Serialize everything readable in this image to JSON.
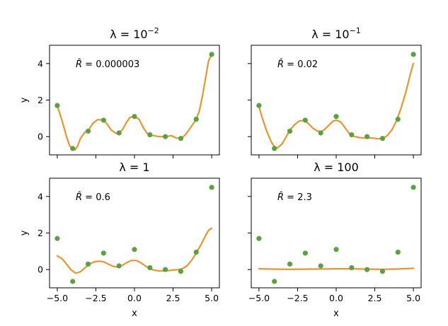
{
  "chart_data": [
    {
      "type": "scatter",
      "title_base": "λ = 10",
      "title_sup": "−2",
      "annotation_symbol": "R̂",
      "annotation_value": " = 0.000003",
      "xlabel": "",
      "ylabel": "y",
      "xlim": [
        -5.5,
        5.5
      ],
      "ylim": [
        -1.0,
        5.0
      ],
      "xticks": [
        "-5.0",
        "-2.5",
        "0.0",
        "2.5",
        "5.0"
      ],
      "yticks": [
        "0",
        "2",
        "4"
      ],
      "show_xticklabels": false,
      "show_yticklabels": true,
      "points": {
        "x": [
          -5,
          -4,
          -3,
          -2,
          -1,
          0,
          1,
          2,
          3,
          4,
          5
        ],
        "y": [
          1.7,
          -0.65,
          0.3,
          0.9,
          0.2,
          1.1,
          0.1,
          0.0,
          -0.1,
          0.95,
          4.5
        ]
      },
      "fit": {
        "x": [
          -5.0,
          -4.7,
          -4.4,
          -4.2,
          -4.0,
          -3.85,
          -3.7,
          -3.5,
          -3.2,
          -3.0,
          -2.7,
          -2.4,
          -2.2,
          -2.0,
          -1.8,
          -1.5,
          -1.2,
          -1.0,
          -0.8,
          -0.5,
          -0.3,
          0.0,
          0.3,
          0.6,
          0.8,
          1.0,
          1.3,
          1.6,
          2.0,
          2.4,
          2.7,
          3.0,
          3.3,
          3.6,
          3.8,
          4.0,
          4.2,
          4.4,
          4.6,
          4.8,
          5.0
        ],
        "y": [
          1.7,
          0.9,
          0.0,
          -0.5,
          -0.68,
          -0.72,
          -0.55,
          -0.1,
          0.25,
          0.32,
          0.72,
          0.92,
          0.92,
          0.88,
          0.72,
          0.35,
          0.18,
          0.2,
          0.35,
          0.8,
          1.05,
          1.1,
          0.95,
          0.45,
          0.2,
          0.1,
          0.04,
          0.0,
          0.0,
          0.05,
          -0.08,
          -0.1,
          0.1,
          0.45,
          0.7,
          0.95,
          1.4,
          2.2,
          3.2,
          4.15,
          4.5
        ]
      }
    },
    {
      "type": "scatter",
      "title_base": "λ = 10",
      "title_sup": "−1",
      "annotation_symbol": "R̂",
      "annotation_value": " = 0.02",
      "xlabel": "",
      "ylabel": "",
      "xlim": [
        -5.5,
        5.5
      ],
      "ylim": [
        -1.0,
        5.0
      ],
      "xticks": [
        "-5.0",
        "-2.5",
        "0.0",
        "2.5",
        "5.0"
      ],
      "yticks": [
        "0",
        "2",
        "4"
      ],
      "show_xticklabels": false,
      "show_yticklabels": false,
      "points": {
        "x": [
          -5,
          -4,
          -3,
          -2,
          -1,
          0,
          1,
          2,
          3,
          4,
          5
        ],
        "y": [
          1.7,
          -0.65,
          0.3,
          0.9,
          0.2,
          1.1,
          0.1,
          0.0,
          -0.1,
          0.95,
          4.5
        ]
      },
      "fit": {
        "x": [
          -5.0,
          -4.8,
          -4.5,
          -4.2,
          -4.0,
          -3.8,
          -3.5,
          -3.2,
          -3.0,
          -2.7,
          -2.4,
          -2.1,
          -1.8,
          -1.5,
          -1.2,
          -1.0,
          -0.8,
          -0.5,
          -0.2,
          0.0,
          0.3,
          0.6,
          0.9,
          1.2,
          1.5,
          1.8,
          2.1,
          2.4,
          2.7,
          3.0,
          3.3,
          3.6,
          3.9,
          4.2,
          4.5,
          4.8,
          5.0
        ],
        "y": [
          1.65,
          1.05,
          0.3,
          -0.3,
          -0.55,
          -0.62,
          -0.4,
          0.05,
          0.35,
          0.65,
          0.85,
          0.88,
          0.72,
          0.45,
          0.3,
          0.28,
          0.35,
          0.6,
          0.85,
          0.9,
          0.8,
          0.45,
          0.12,
          0.0,
          -0.05,
          -0.08,
          -0.07,
          -0.08,
          -0.12,
          -0.1,
          0.05,
          0.35,
          0.85,
          1.55,
          2.4,
          3.4,
          4.0
        ]
      }
    },
    {
      "type": "scatter",
      "title_base": "λ = 1",
      "title_sup": "",
      "annotation_symbol": "R̂",
      "annotation_value": " = 0.6",
      "xlabel": "x",
      "ylabel": "y",
      "xlim": [
        -5.5,
        5.5
      ],
      "ylim": [
        -1.0,
        5.0
      ],
      "xticks": [
        "−5.0",
        "−2.5",
        "0.0",
        "2.5",
        "5.0"
      ],
      "yticks": [
        "0",
        "2",
        "4"
      ],
      "show_xticklabels": true,
      "show_yticklabels": true,
      "points": {
        "x": [
          -5,
          -4,
          -3,
          -2,
          -1,
          0,
          1,
          2,
          3,
          4,
          5
        ],
        "y": [
          1.7,
          -0.65,
          0.3,
          0.9,
          0.2,
          1.1,
          0.1,
          0.0,
          -0.1,
          0.95,
          4.5
        ]
      },
      "fit": {
        "x": [
          -5.0,
          -4.7,
          -4.4,
          -4.1,
          -3.8,
          -3.5,
          -3.2,
          -2.9,
          -2.6,
          -2.3,
          -2.0,
          -1.7,
          -1.4,
          -1.1,
          -0.8,
          -0.5,
          -0.2,
          0.1,
          0.4,
          0.7,
          1.0,
          1.3,
          1.6,
          1.9,
          2.2,
          2.5,
          2.8,
          3.1,
          3.4,
          3.7,
          4.0,
          4.3,
          4.6,
          4.8,
          5.0
        ],
        "y": [
          0.75,
          0.6,
          0.3,
          -0.02,
          -0.2,
          -0.12,
          0.1,
          0.3,
          0.42,
          0.46,
          0.42,
          0.3,
          0.18,
          0.14,
          0.22,
          0.38,
          0.5,
          0.5,
          0.38,
          0.2,
          0.04,
          -0.04,
          -0.08,
          -0.08,
          -0.06,
          -0.03,
          -0.01,
          0.05,
          0.2,
          0.5,
          0.9,
          1.35,
          1.85,
          2.15,
          2.25
        ]
      }
    },
    {
      "type": "scatter",
      "title_base": "λ = 100",
      "title_sup": "",
      "annotation_symbol": "R̂",
      "annotation_value": " = 2.3",
      "xlabel": "x",
      "ylabel": "",
      "xlim": [
        -5.5,
        5.5
      ],
      "ylim": [
        -1.0,
        5.0
      ],
      "xticks": [
        "−5.0",
        "−2.5",
        "0.0",
        "2.5",
        "5.0"
      ],
      "yticks": [
        "0",
        "2",
        "4"
      ],
      "show_xticklabels": true,
      "show_yticklabels": false,
      "points": {
        "x": [
          -5,
          -4,
          -3,
          -2,
          -1,
          0,
          1,
          2,
          3,
          4,
          5
        ],
        "y": [
          1.7,
          -0.65,
          0.3,
          0.9,
          0.2,
          1.1,
          0.1,
          0.0,
          -0.1,
          0.95,
          4.5
        ]
      },
      "fit": {
        "x": [
          -5.0,
          -4.0,
          -3.0,
          -2.0,
          -1.0,
          0.0,
          1.0,
          2.0,
          3.0,
          4.0,
          5.0
        ],
        "y": [
          0.04,
          0.02,
          0.01,
          0.02,
          0.03,
          0.04,
          0.04,
          0.02,
          0.01,
          0.03,
          0.07
        ]
      }
    }
  ]
}
